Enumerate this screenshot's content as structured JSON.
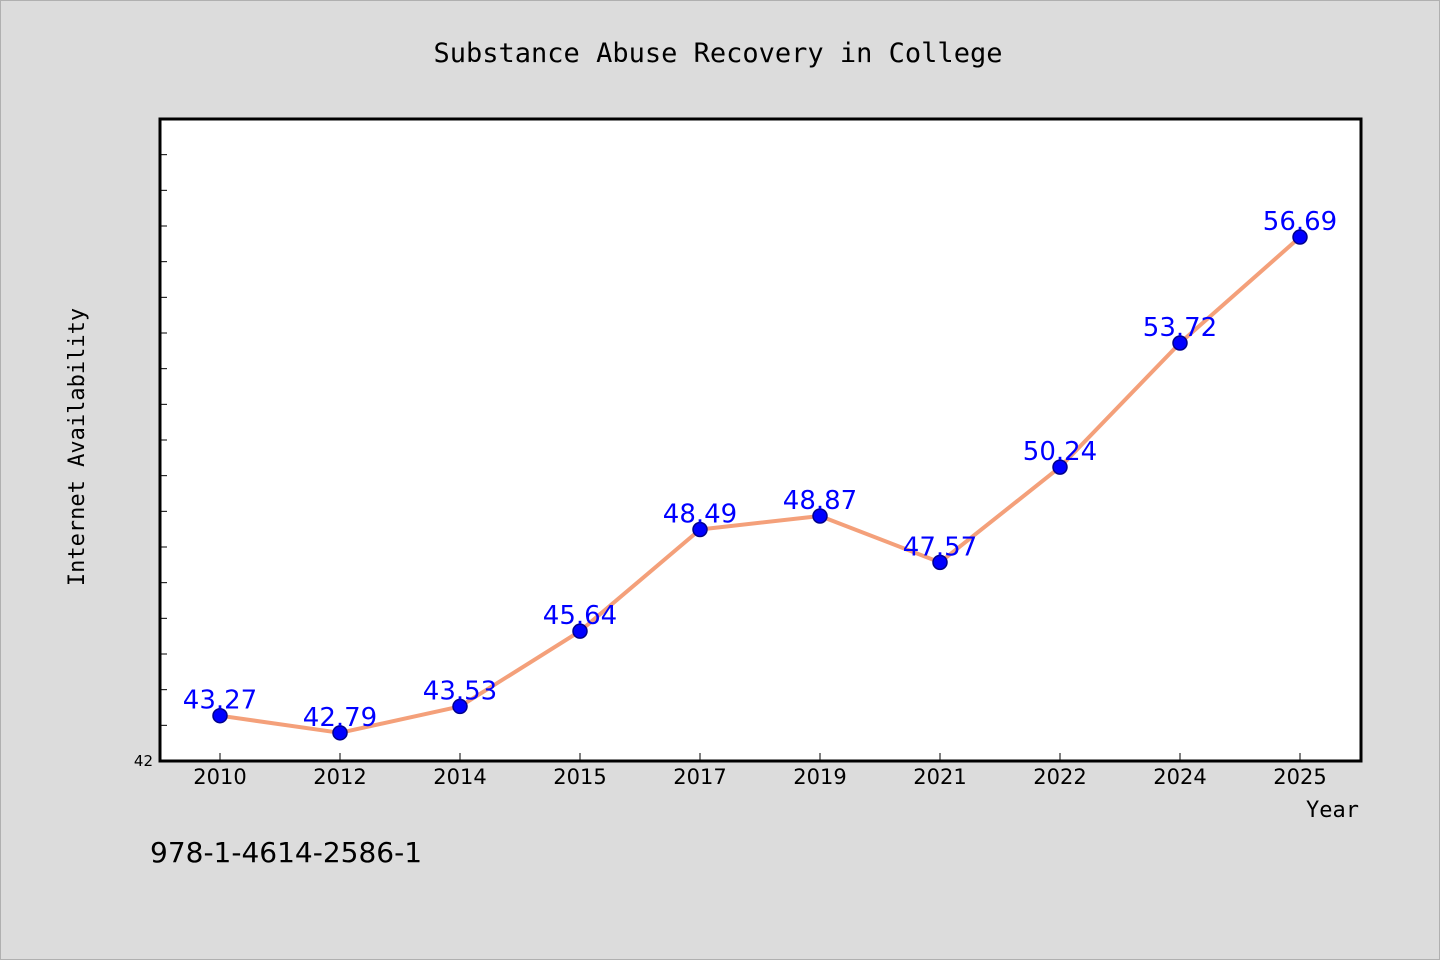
{
  "chart_data": {
    "type": "line",
    "title": "Substance Abuse Recovery in College",
    "xlabel": "Year",
    "ylabel": "Internet Availability",
    "categories": [
      "2010",
      "2012",
      "2014",
      "2015",
      "2017",
      "2019",
      "2021",
      "2022",
      "2024",
      "2025"
    ],
    "series": [
      {
        "values": [
          43.27,
          42.79,
          43.53,
          45.64,
          48.49,
          48.87,
          47.57,
          50.24,
          53.72,
          56.69
        ],
        "labels": [
          "43.27",
          "42.79",
          "43.53",
          "45.64",
          "48.49",
          "48.87",
          "47.57",
          "50.24",
          "53.72",
          "56.69"
        ]
      }
    ],
    "ylim": [
      42,
      60
    ],
    "y_tick_labels": [
      "42"
    ],
    "y_minor_ticks": 17,
    "grid": false,
    "legend": "none",
    "colors": {
      "line": "#f4a07a",
      "marker": "#0000ff",
      "marker_edge": "#00008b",
      "data_label": "#0000ff",
      "plot_background": "#ffffff",
      "figure_background": "#dcdcdc"
    }
  },
  "footnote": "978-1-4614-2586-1"
}
